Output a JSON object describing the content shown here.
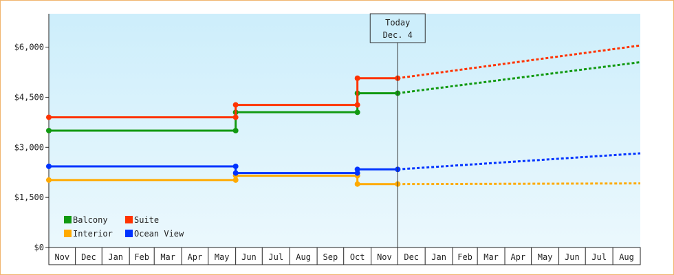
{
  "chart_data": {
    "type": "line",
    "title": "",
    "xlabel": "",
    "ylabel": "",
    "ylim": [
      0,
      7000
    ],
    "yticks": [
      0,
      1500,
      3000,
      4500,
      6000
    ],
    "ytick_labels": [
      "$0",
      "$1,500",
      "$3,000",
      "$4,500",
      "$6,000"
    ],
    "months": [
      "Nov",
      "Dec",
      "Jan",
      "Feb",
      "Mar",
      "Apr",
      "May",
      "Jun",
      "Jul",
      "Aug",
      "Sep",
      "Oct",
      "Nov",
      "Dec",
      "Jan",
      "Feb",
      "Mar",
      "Apr",
      "May",
      "Jun",
      "Jul",
      "Aug"
    ],
    "month_widths": [
      30,
      30,
      31,
      28,
      31,
      30,
      31,
      30,
      31,
      31,
      30,
      31,
      30,
      31,
      31,
      28,
      31,
      30,
      31,
      30,
      31,
      31
    ],
    "today_marker": {
      "line1": "Today",
      "line2": "Dec. 4",
      "month_index": 13,
      "day_offset": 0
    },
    "legend_position": "bottom-left",
    "background": {
      "top": "#cdeefb",
      "bottom": "#ebf8fd"
    },
    "series": [
      {
        "name": "Balcony",
        "color": "#119911",
        "steps": [
          {
            "start": 0,
            "value": 3500
          },
          {
            "start": 7,
            "value": 4050
          },
          {
            "start": 11.5,
            "value": 4620
          }
        ],
        "forecast": [
          {
            "x": 13,
            "value": 4620
          },
          {
            "x": 22,
            "value": 5550
          }
        ]
      },
      {
        "name": "Suite",
        "color": "#ff3300",
        "steps": [
          {
            "start": 0,
            "value": 3900
          },
          {
            "start": 7,
            "value": 4270
          },
          {
            "start": 11.5,
            "value": 5070
          }
        ],
        "forecast": [
          {
            "x": 13,
            "value": 5070
          },
          {
            "x": 22,
            "value": 6050
          }
        ]
      },
      {
        "name": "Interior",
        "color": "#ffaa00",
        "steps": [
          {
            "start": 0,
            "value": 2020
          },
          {
            "start": 7,
            "value": 2150
          },
          {
            "start": 11.5,
            "value": 1900
          }
        ],
        "forecast": [
          {
            "x": 13,
            "value": 1900
          },
          {
            "x": 22,
            "value": 1920
          }
        ]
      },
      {
        "name": "Ocean View",
        "color": "#0033ff",
        "steps": [
          {
            "start": 0,
            "value": 2430
          },
          {
            "start": 7,
            "value": 2230
          },
          {
            "start": 11.5,
            "value": 2340
          }
        ],
        "forecast": [
          {
            "x": 13,
            "value": 2340
          },
          {
            "x": 22,
            "value": 2820
          }
        ]
      }
    ]
  }
}
